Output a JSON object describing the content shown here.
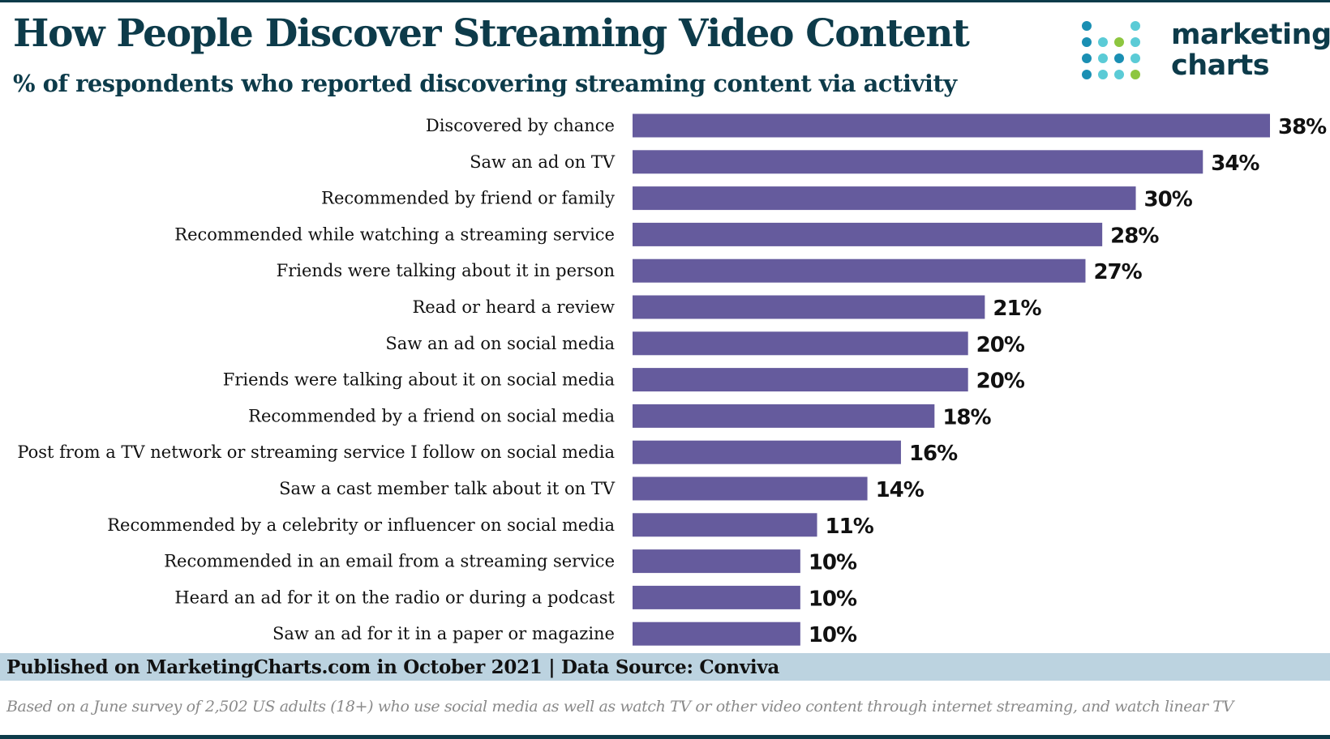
{
  "header": {
    "title": "How People Discover Streaming Video Content",
    "subtitle": "% of respondents who reported discovering streaming content via activity"
  },
  "logo": {
    "line1": "marketing",
    "line2": "charts",
    "dot_colors": [
      "#1a8fb3",
      "#5bcbd6",
      "#8dc63f"
    ]
  },
  "chart_data": {
    "type": "bar",
    "orientation": "horizontal",
    "categories": [
      "Discovered by chance",
      "Saw an ad on TV",
      "Recommended by friend or family",
      "Recommended while watching a streaming service",
      "Friends were talking about it in person",
      "Read or heard a review",
      "Saw an ad on social media",
      "Friends were talking about it on social media",
      "Recommended by a friend on social media",
      "Post from a TV network or streaming service I follow on social media",
      "Saw a cast member talk about it on TV",
      "Recommended by a celebrity or influencer on social media",
      "Recommended in an email from a streaming service",
      "Heard an ad for it on the radio or during a podcast",
      "Saw an ad for it in a paper or magazine"
    ],
    "values": [
      38,
      34,
      30,
      28,
      27,
      21,
      20,
      20,
      18,
      16,
      14,
      11,
      10,
      10,
      10
    ],
    "value_suffix": "%",
    "xlim": [
      0,
      38
    ],
    "grid": false,
    "bar_color": "#655b9d"
  },
  "footer": {
    "source": "Published on MarketingCharts.com in October 2021 | Data Source: Conviva",
    "note": "Based on a June survey of 2,502 US adults (18+) who use social media as well as watch TV or other video content through internet streaming, and watch linear TV"
  }
}
